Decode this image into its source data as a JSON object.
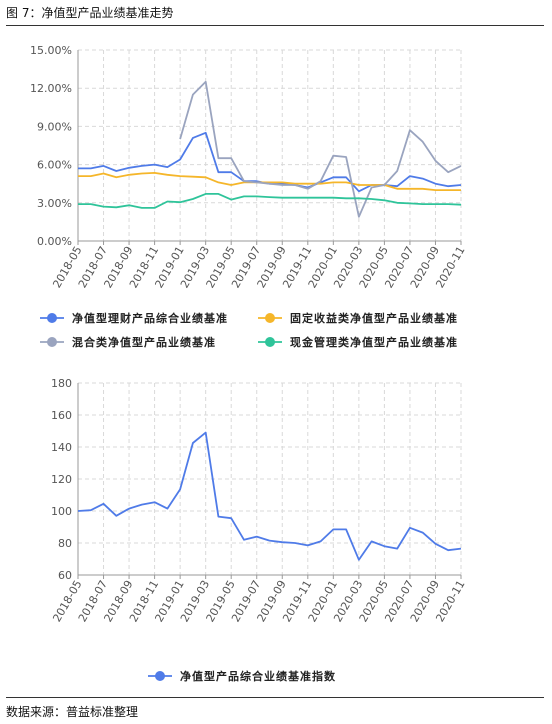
{
  "header": {
    "figure_title": "图 7：净值型产品业绩基准走势"
  },
  "footer": {
    "source": "数据来源：普益标准整理"
  },
  "colors": {
    "blue": "#4f7be8",
    "yellow": "#f5b62a",
    "gray": "#9aa4bf",
    "green": "#2fc49a",
    "grid": "#d9d9d9",
    "axis": "#999999"
  },
  "chart_data": [
    {
      "type": "line",
      "categories": [
        "2018-05",
        "2018-06",
        "2018-07",
        "2018-08",
        "2018-09",
        "2018-10",
        "2018-11",
        "2018-12",
        "2019-01",
        "2019-02",
        "2019-03",
        "2019-04",
        "2019-05",
        "2019-06",
        "2019-07",
        "2019-08",
        "2019-09",
        "2019-10",
        "2019-11",
        "2019-12",
        "2020-01",
        "2020-02",
        "2020-03",
        "2020-04",
        "2020-05",
        "2020-06",
        "2020-07",
        "2020-08",
        "2020-09",
        "2020-10",
        "2020-11"
      ],
      "tick_labels": [
        "2018-05",
        "2018-07",
        "2018-09",
        "2018-11",
        "2019-01",
        "2019-03",
        "2019-05",
        "2019-07",
        "2019-09",
        "2019-11",
        "2020-01",
        "2020-03",
        "2020-05",
        "2020-07",
        "2020-09",
        "2020-11"
      ],
      "ylim": [
        0,
        15
      ],
      "yticks": [
        0,
        3,
        6,
        9,
        12,
        15
      ],
      "ytick_labels": [
        "0.00%",
        "3.00%",
        "6.00%",
        "9.00%",
        "12.00%",
        "15.00%"
      ],
      "grid": true,
      "legend_position": "bottom",
      "series": [
        {
          "name": "净值型理财产品综合业绩基准",
          "color": "#4f7be8",
          "values": [
            5.7,
            5.7,
            5.9,
            5.5,
            5.75,
            5.9,
            6.0,
            5.8,
            6.4,
            8.1,
            8.5,
            5.4,
            5.4,
            4.7,
            4.7,
            4.5,
            4.5,
            4.4,
            4.2,
            4.6,
            5.0,
            5.0,
            3.9,
            4.4,
            4.4,
            4.3,
            5.1,
            4.9,
            4.5,
            4.3,
            4.4
          ]
        },
        {
          "name": "固定收益类净值型产品业绩基准",
          "color": "#f5b62a",
          "values": [
            5.1,
            5.1,
            5.3,
            5.0,
            5.2,
            5.3,
            5.35,
            5.2,
            5.1,
            5.05,
            5.0,
            4.6,
            4.4,
            4.6,
            4.6,
            4.6,
            4.6,
            4.5,
            4.5,
            4.5,
            4.6,
            4.6,
            4.4,
            4.4,
            4.4,
            4.1,
            4.1,
            4.1,
            4.0,
            4.0,
            4.0
          ]
        },
        {
          "name": "混合类净值型产品业绩基准",
          "color": "#9aa4bf",
          "values": [
            null,
            null,
            null,
            null,
            null,
            null,
            null,
            null,
            8.0,
            11.5,
            12.5,
            6.5,
            6.5,
            4.7,
            4.6,
            4.5,
            4.4,
            4.4,
            4.1,
            4.7,
            6.7,
            6.6,
            1.9,
            4.2,
            4.4,
            5.5,
            8.7,
            7.8,
            6.3,
            5.4,
            5.9
          ]
        },
        {
          "name": "现金管理类净值型产品业绩基准",
          "color": "#2fc49a",
          "values": [
            2.9,
            2.9,
            2.7,
            2.65,
            2.8,
            2.6,
            2.6,
            3.1,
            3.05,
            3.3,
            3.7,
            3.7,
            3.25,
            3.5,
            3.5,
            3.45,
            3.4,
            3.4,
            3.4,
            3.4,
            3.4,
            3.35,
            3.35,
            3.3,
            3.2,
            3.0,
            2.95,
            2.9,
            2.9,
            2.9,
            2.85
          ]
        }
      ]
    },
    {
      "type": "line",
      "categories": [
        "2018-05",
        "2018-06",
        "2018-07",
        "2018-08",
        "2018-09",
        "2018-10",
        "2018-11",
        "2018-12",
        "2019-01",
        "2019-02",
        "2019-03",
        "2019-04",
        "2019-05",
        "2019-06",
        "2019-07",
        "2019-08",
        "2019-09",
        "2019-10",
        "2019-11",
        "2019-12",
        "2020-01",
        "2020-02",
        "2020-03",
        "2020-04",
        "2020-05",
        "2020-06",
        "2020-07",
        "2020-08",
        "2020-09",
        "2020-10",
        "2020-11"
      ],
      "tick_labels": [
        "2018-05",
        "2018-07",
        "2018-09",
        "2018-11",
        "2019-01",
        "2019-03",
        "2019-05",
        "2019-07",
        "2019-09",
        "2019-11",
        "2020-01",
        "2020-03",
        "2020-05",
        "2020-07",
        "2020-09",
        "2020-11"
      ],
      "ylim": [
        60,
        180
      ],
      "yticks": [
        60,
        80,
        100,
        120,
        140,
        160,
        180
      ],
      "ytick_labels": [
        "60",
        "80",
        "100",
        "120",
        "140",
        "160",
        "180"
      ],
      "grid": true,
      "legend_position": "bottom",
      "series": [
        {
          "name": "净值型产品综合业绩基准指数",
          "color": "#4f7be8",
          "values": [
            100,
            100.5,
            104.5,
            97,
            101.5,
            104,
            105.5,
            101.5,
            113.5,
            142.5,
            149,
            96.5,
            95.5,
            82,
            84,
            81.5,
            80.5,
            80,
            78.5,
            81,
            88.5,
            88.5,
            69.5,
            81,
            78,
            76.5,
            89.5,
            86.5,
            79.5,
            75.5,
            76.5
          ]
        }
      ]
    }
  ]
}
